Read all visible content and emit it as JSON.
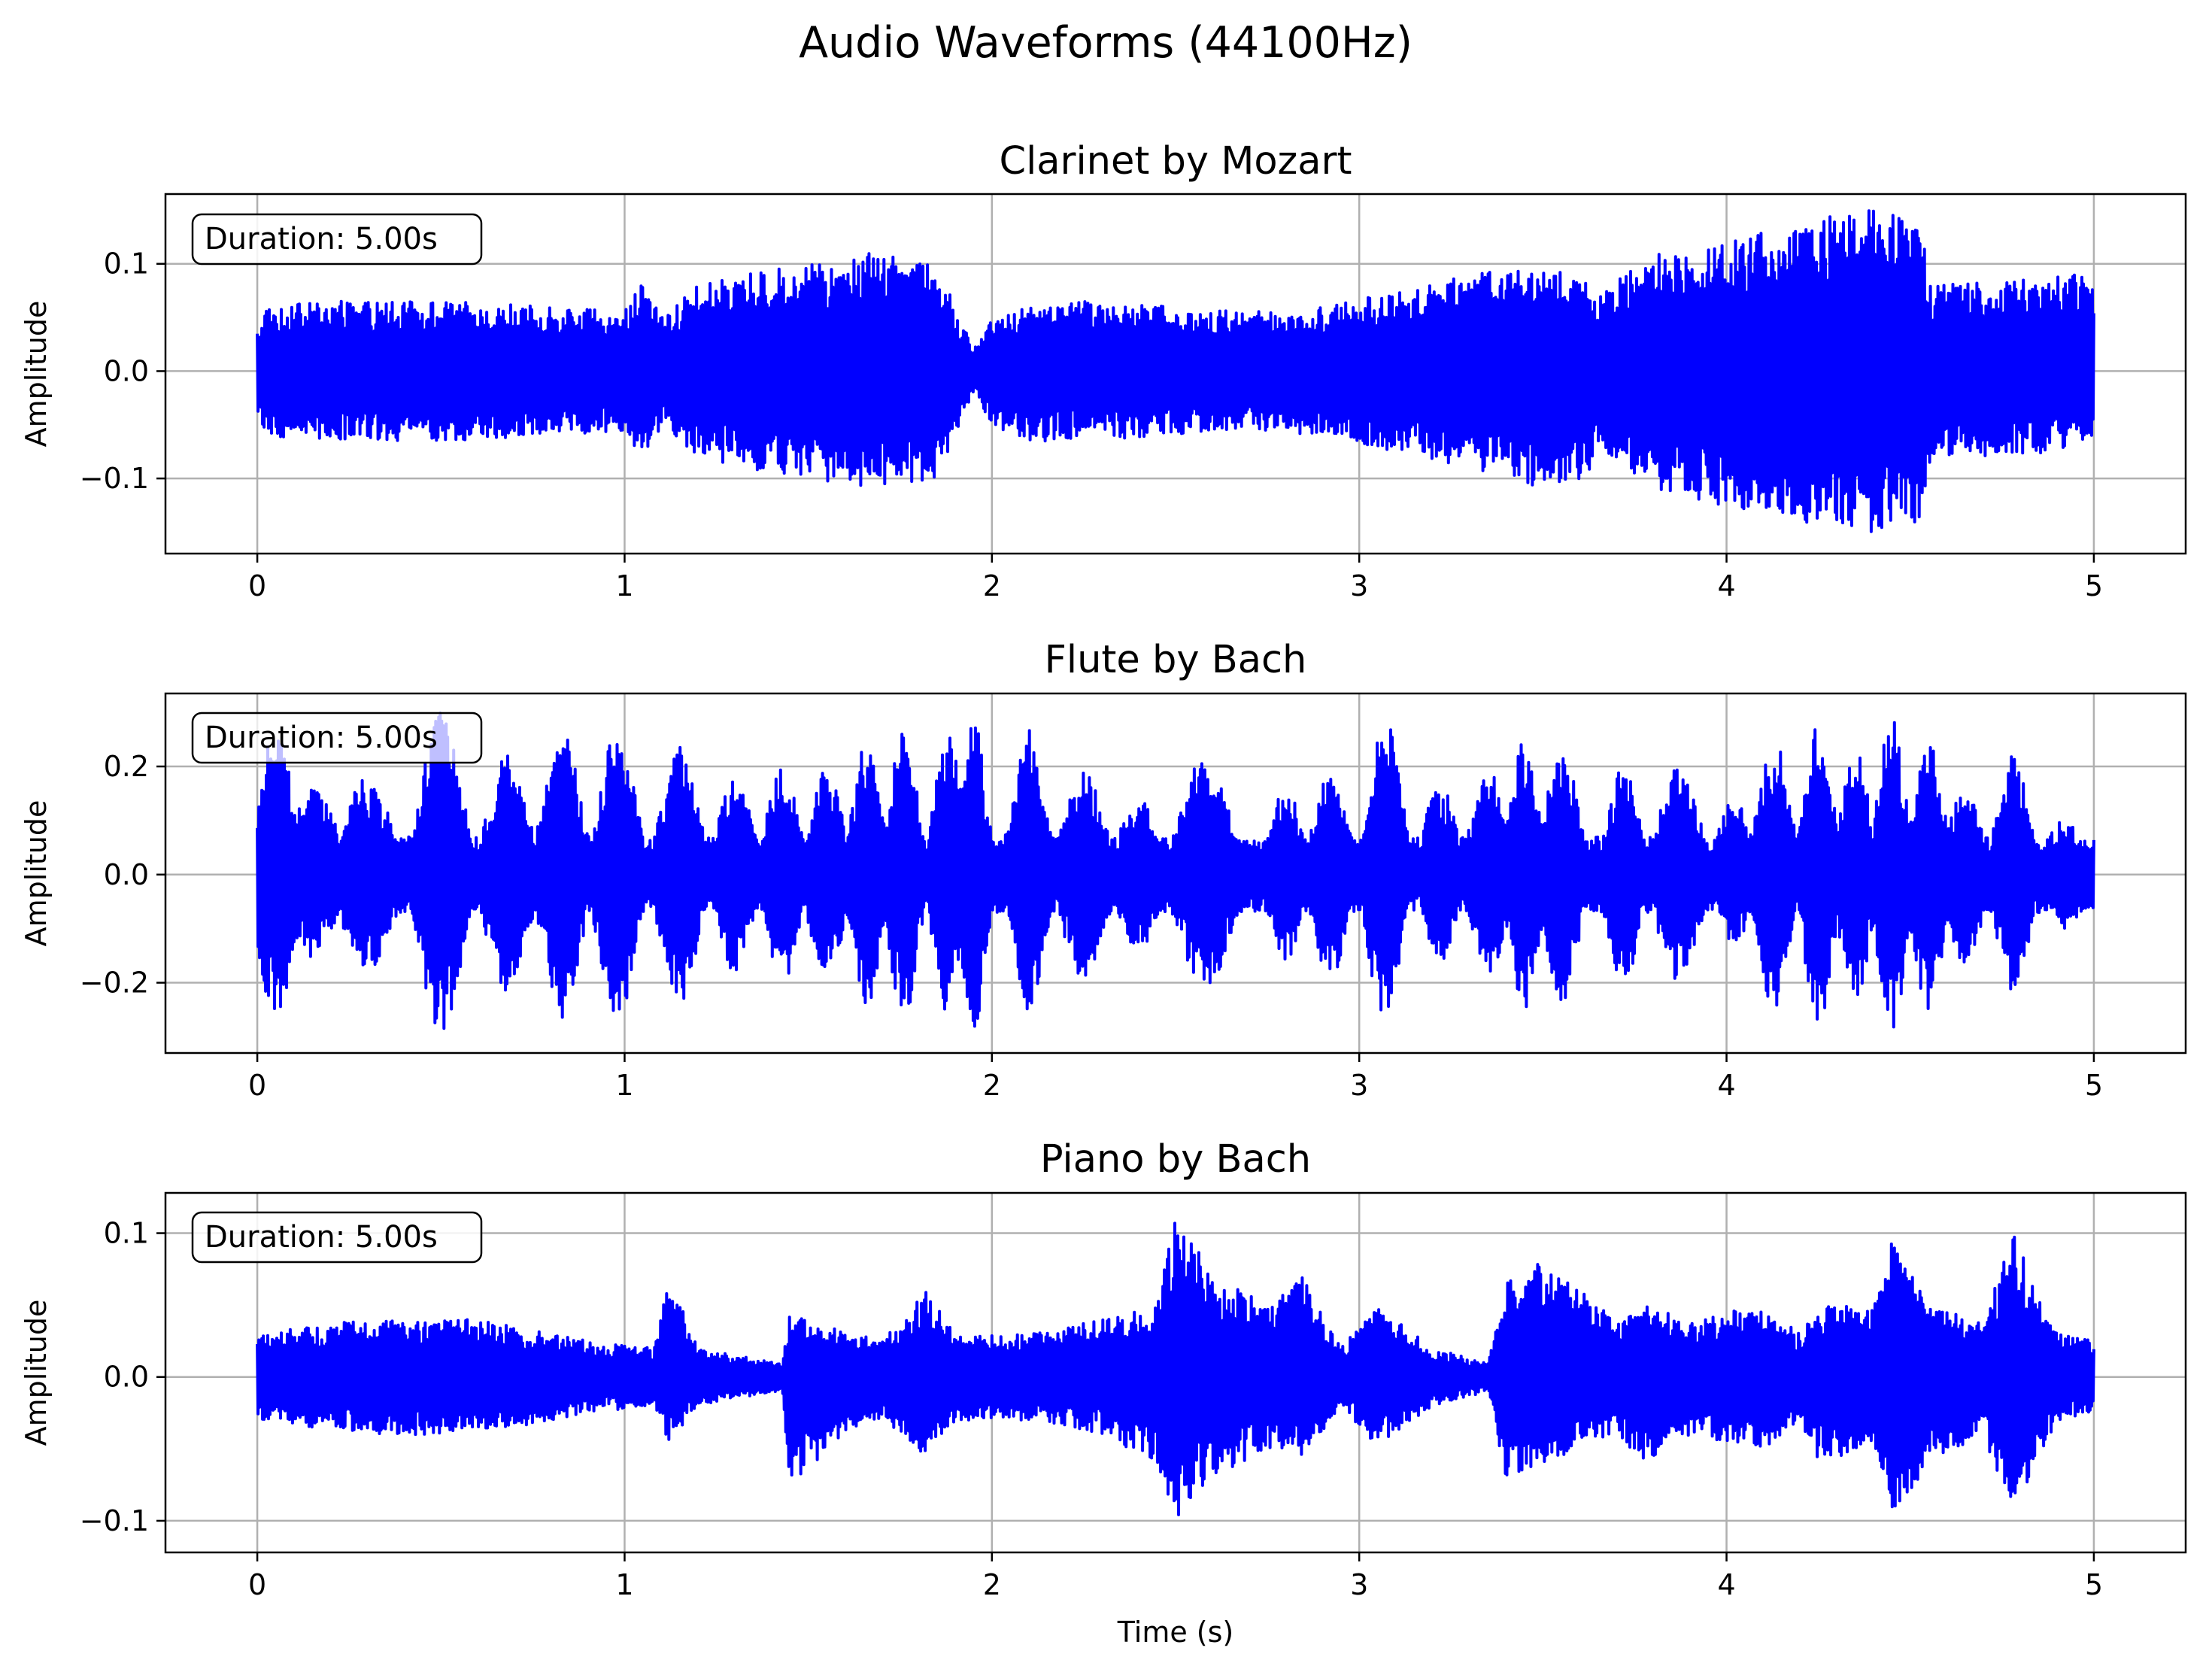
{
  "figure": {
    "suptitle": "Audio Waveforms (44100Hz)",
    "xlabel": "Time (s)",
    "ylabel": "Amplitude",
    "line_color": "#0000ff"
  },
  "chart_data": [
    {
      "type": "line",
      "title": "Clarinet by Mozart",
      "annotation": "Duration: 5.00s",
      "ylabel": "Amplitude",
      "xlabel": "",
      "xlim": [
        -0.25,
        5.25
      ],
      "ylim": [
        -0.17,
        0.165
      ],
      "xticks": [
        0,
        1,
        2,
        3,
        4,
        5
      ],
      "xtick_labels": [
        "0",
        "1",
        "2",
        "3",
        "4",
        "5"
      ],
      "yticks": [
        -0.1,
        0.0,
        0.1
      ],
      "ytick_labels": [
        "−0.1",
        "0.0",
        "0.1"
      ],
      "grid": true,
      "series": [
        {
          "color": "#0000ff",
          "envelope": {
            "t": [
              0.0,
              0.02,
              0.2,
              0.5,
              0.8,
              1.0,
              1.05,
              1.1,
              1.2,
              1.4,
              1.6,
              1.7,
              1.85,
              1.95,
              2.0,
              2.1,
              2.3,
              2.5,
              2.7,
              2.9,
              3.1,
              3.3,
              3.5,
              3.62,
              3.65,
              3.8,
              4.0,
              4.2,
              4.4,
              4.53,
              4.56,
              4.7,
              4.9,
              5.0
            ],
            "upper": [
              0.04,
              0.06,
              0.065,
              0.065,
              0.06,
              0.055,
              0.085,
              0.05,
              0.08,
              0.095,
              0.105,
              0.115,
              0.1,
              0.02,
              0.05,
              0.065,
              0.065,
              0.06,
              0.055,
              0.06,
              0.075,
              0.09,
              0.1,
              0.085,
              0.07,
              0.11,
              0.12,
              0.14,
              0.15,
              0.14,
              0.08,
              0.085,
              0.09,
              0.09
            ],
            "lower": [
              -0.04,
              -0.06,
              -0.065,
              -0.065,
              -0.06,
              -0.055,
              -0.09,
              -0.05,
              -0.08,
              -0.095,
              -0.105,
              -0.11,
              -0.1,
              -0.02,
              -0.05,
              -0.065,
              -0.065,
              -0.06,
              -0.055,
              -0.06,
              -0.075,
              -0.09,
              -0.11,
              -0.1,
              -0.07,
              -0.11,
              -0.13,
              -0.14,
              -0.15,
              -0.14,
              -0.08,
              -0.08,
              -0.075,
              -0.07
            ]
          }
        }
      ]
    },
    {
      "type": "line",
      "title": "Flute by Bach",
      "annotation": "Duration: 5.00s",
      "ylabel": "Amplitude",
      "xlabel": "",
      "xlim": [
        -0.25,
        5.25
      ],
      "ylim": [
        -0.33,
        0.335
      ],
      "xticks": [
        0,
        1,
        2,
        3,
        4,
        5
      ],
      "xtick_labels": [
        "0",
        "1",
        "2",
        "3",
        "4",
        "5"
      ],
      "yticks": [
        -0.2,
        0.0,
        0.2
      ],
      "ytick_labels": [
        "−0.2",
        "0.0",
        "0.2"
      ],
      "grid": true,
      "series": [
        {
          "color": "#0000ff",
          "bursts": [
            {
              "t": 0.05,
              "a": 0.27,
              "w": 0.045
            },
            {
              "t": 0.15,
              "a": 0.16,
              "w": 0.06
            },
            {
              "t": 0.3,
              "a": 0.18,
              "w": 0.06
            },
            {
              "t": 0.5,
              "a": 0.3,
              "w": 0.05
            },
            {
              "t": 0.68,
              "a": 0.22,
              "w": 0.05
            },
            {
              "t": 0.83,
              "a": 0.27,
              "w": 0.045
            },
            {
              "t": 0.98,
              "a": 0.27,
              "w": 0.045
            },
            {
              "t": 1.15,
              "a": 0.24,
              "w": 0.045
            },
            {
              "t": 1.3,
              "a": 0.18,
              "w": 0.045
            },
            {
              "t": 1.43,
              "a": 0.2,
              "w": 0.04
            },
            {
              "t": 1.55,
              "a": 0.2,
              "w": 0.04
            },
            {
              "t": 1.66,
              "a": 0.25,
              "w": 0.035
            },
            {
              "t": 1.76,
              "a": 0.27,
              "w": 0.035
            },
            {
              "t": 1.88,
              "a": 0.26,
              "w": 0.035
            },
            {
              "t": 1.95,
              "a": 0.29,
              "w": 0.03
            },
            {
              "t": 2.1,
              "a": 0.27,
              "w": 0.04
            },
            {
              "t": 2.25,
              "a": 0.2,
              "w": 0.05
            },
            {
              "t": 2.4,
              "a": 0.14,
              "w": 0.05
            },
            {
              "t": 2.58,
              "a": 0.22,
              "w": 0.06
            },
            {
              "t": 2.8,
              "a": 0.16,
              "w": 0.04
            },
            {
              "t": 2.92,
              "a": 0.2,
              "w": 0.04
            },
            {
              "t": 3.07,
              "a": 0.29,
              "w": 0.04
            },
            {
              "t": 3.22,
              "a": 0.17,
              "w": 0.04
            },
            {
              "t": 3.35,
              "a": 0.2,
              "w": 0.04
            },
            {
              "t": 3.45,
              "a": 0.25,
              "w": 0.035
            },
            {
              "t": 3.55,
              "a": 0.25,
              "w": 0.04
            },
            {
              "t": 3.72,
              "a": 0.2,
              "w": 0.04
            },
            {
              "t": 3.87,
              "a": 0.2,
              "w": 0.05
            },
            {
              "t": 4.02,
              "a": 0.14,
              "w": 0.04
            },
            {
              "t": 4.13,
              "a": 0.25,
              "w": 0.04
            },
            {
              "t": 4.25,
              "a": 0.28,
              "w": 0.035
            },
            {
              "t": 4.35,
              "a": 0.24,
              "w": 0.035
            },
            {
              "t": 4.45,
              "a": 0.29,
              "w": 0.035
            },
            {
              "t": 4.55,
              "a": 0.26,
              "w": 0.035
            },
            {
              "t": 4.65,
              "a": 0.17,
              "w": 0.04
            },
            {
              "t": 4.78,
              "a": 0.22,
              "w": 0.04
            },
            {
              "t": 4.92,
              "a": 0.1,
              "w": 0.05
            }
          ],
          "floor": 0.07
        }
      ]
    },
    {
      "type": "line",
      "title": "Piano by Bach",
      "annotation": "Duration: 5.00s",
      "ylabel": "Amplitude",
      "xlabel": "Time (s)",
      "xlim": [
        -0.25,
        5.25
      ],
      "ylim": [
        -0.122,
        0.128
      ],
      "xticks": [
        0,
        1,
        2,
        3,
        4,
        5
      ],
      "xtick_labels": [
        "0",
        "1",
        "2",
        "3",
        "4",
        "5"
      ],
      "yticks": [
        -0.1,
        0.0,
        0.1
      ],
      "ytick_labels": [
        "−0.1",
        "0.0",
        "0.1"
      ],
      "grid": true,
      "series": [
        {
          "color": "#0000ff",
          "envelope": {
            "t": [
              0.0,
              0.3,
              0.6,
              0.9,
              1.08,
              1.12,
              1.2,
              1.3,
              1.43,
              1.45,
              1.55,
              1.7,
              1.82,
              1.9,
              2.1,
              2.3,
              2.45,
              2.5,
              2.6,
              2.75,
              2.85,
              2.95,
              3.05,
              3.2,
              3.35,
              3.4,
              3.5,
              3.7,
              3.77,
              3.9,
              4.1,
              4.2,
              4.25,
              4.4,
              4.45,
              4.55,
              4.7,
              4.78,
              4.9,
              5.0
            ],
            "upper": [
              0.03,
              0.04,
              0.04,
              0.025,
              0.02,
              0.07,
              0.02,
              0.015,
              0.01,
              0.045,
              0.035,
              0.025,
              0.06,
              0.03,
              0.03,
              0.04,
              0.05,
              0.115,
              0.07,
              0.05,
              0.07,
              0.02,
              0.05,
              0.02,
              0.01,
              0.07,
              0.08,
              0.04,
              0.05,
              0.04,
              0.05,
              0.03,
              0.05,
              0.05,
              0.095,
              0.05,
              0.04,
              0.1,
              0.03,
              0.025
            ],
            "lower": [
              -0.03,
              -0.04,
              -0.04,
              -0.025,
              -0.02,
              -0.045,
              -0.02,
              -0.015,
              -0.01,
              -0.08,
              -0.05,
              -0.03,
              -0.055,
              -0.03,
              -0.03,
              -0.04,
              -0.06,
              -0.1,
              -0.07,
              -0.05,
              -0.055,
              -0.02,
              -0.05,
              -0.02,
              -0.01,
              -0.075,
              -0.06,
              -0.04,
              -0.06,
              -0.04,
              -0.05,
              -0.03,
              -0.06,
              -0.05,
              -0.1,
              -0.06,
              -0.04,
              -0.1,
              -0.03,
              -0.025
            ]
          }
        }
      ]
    }
  ]
}
